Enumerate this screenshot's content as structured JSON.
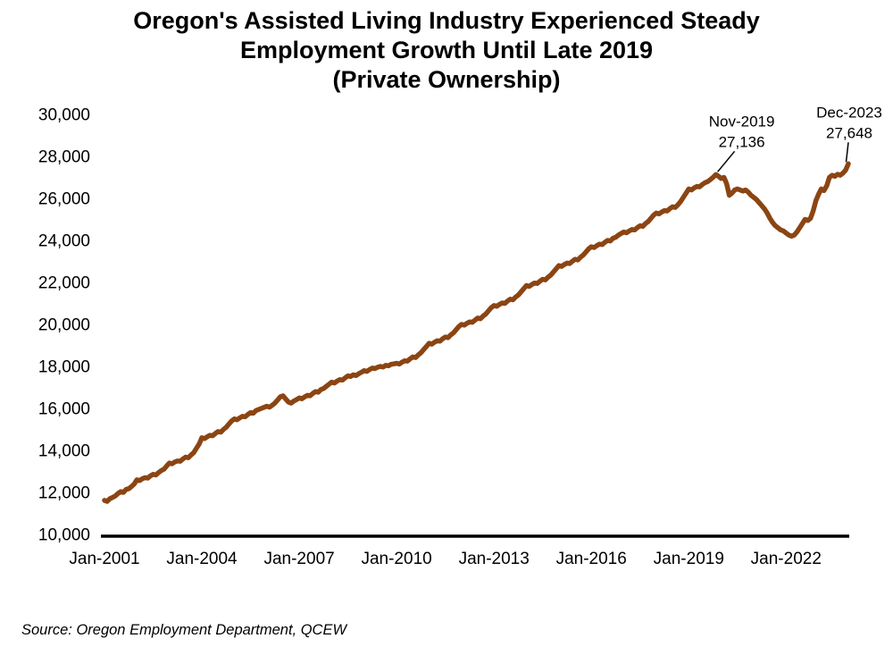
{
  "title_lines": [
    "Oregon's Assisted Living Industry Experienced Steady",
    "Employment Growth Until Late 2019",
    "(Private Ownership)"
  ],
  "source_note": "Source: Oregon Employment Department, QCEW",
  "chart_data": {
    "type": "line",
    "series_name": "Oregon assisted living employment, private ownership",
    "frequency": "monthly",
    "x_start": "Jan-2001",
    "x_end": "Dec-2023",
    "x_tick_labels": [
      "Jan-2001",
      "Jan-2004",
      "Jan-2007",
      "Jan-2010",
      "Jan-2013",
      "Jan-2016",
      "Jan-2019",
      "Jan-2022"
    ],
    "x_tick_month_indices": [
      0,
      36,
      72,
      108,
      144,
      180,
      216,
      252
    ],
    "y_tick_labels": [
      "10,000",
      "12,000",
      "14,000",
      "16,000",
      "18,000",
      "20,000",
      "22,000",
      "24,000",
      "26,000",
      "28,000",
      "30,000"
    ],
    "y_tick_values": [
      10000,
      12000,
      14000,
      16000,
      18000,
      20000,
      22000,
      24000,
      26000,
      28000,
      30000
    ],
    "ylim": [
      10000,
      30000
    ],
    "grid": false,
    "legend": false,
    "line_color": "#8B4513",
    "values": [
      11620,
      11570,
      11700,
      11760,
      11830,
      11950,
      12040,
      12000,
      12140,
      12180,
      12280,
      12400,
      12600,
      12560,
      12650,
      12700,
      12680,
      12790,
      12860,
      12830,
      12950,
      13040,
      13100,
      13260,
      13400,
      13360,
      13450,
      13500,
      13480,
      13590,
      13680,
      13650,
      13780,
      13900,
      14100,
      14300,
      14600,
      14560,
      14650,
      14720,
      14700,
      14810,
      14900,
      14870,
      15000,
      15100,
      15250,
      15400,
      15500,
      15460,
      15550,
      15620,
      15600,
      15710,
      15800,
      15770,
      15900,
      15950,
      16000,
      16050,
      16100,
      16060,
      16150,
      16250,
      16400,
      16550,
      16600,
      16450,
      16300,
      16250,
      16350,
      16420,
      16500,
      16460,
      16550,
      16620,
      16600,
      16710,
      16800,
      16770,
      16900,
      16950,
      17050,
      17150,
      17250,
      17210,
      17300,
      17370,
      17350,
      17460,
      17550,
      17520,
      17600,
      17560,
      17650,
      17720,
      17800,
      17760,
      17850,
      17920,
      17900,
      17960,
      18000,
      17970,
      18050,
      18030,
      18100,
      18120,
      18150,
      18110,
      18200,
      18270,
      18250,
      18360,
      18450,
      18420,
      18550,
      18650,
      18800,
      18950,
      19100,
      19060,
      19150,
      19220,
      19200,
      19310,
      19400,
      19370,
      19500,
      19600,
      19750,
      19900,
      20000,
      19960,
      20050,
      20120,
      20100,
      20210,
      20300,
      20270,
      20400,
      20500,
      20650,
      20800,
      20900,
      20860,
      20950,
      21020,
      21000,
      21110,
      21200,
      21170,
      21300,
      21400,
      21550,
      21700,
      21850,
      21810,
      21900,
      21970,
      21950,
      22060,
      22150,
      22120,
      22250,
      22350,
      22500,
      22650,
      22800,
      22760,
      22850,
      22920,
      22900,
      23010,
      23100,
      23070,
      23200,
      23300,
      23450,
      23600,
      23700,
      23660,
      23750,
      23820,
      23800,
      23910,
      24000,
      23970,
      24100,
      24150,
      24250,
      24330,
      24400,
      24360,
      24450,
      24520,
      24500,
      24610,
      24700,
      24670,
      24800,
      24900,
      25050,
      25200,
      25300,
      25260,
      25350,
      25420,
      25400,
      25510,
      25600,
      25570,
      25700,
      25850,
      26050,
      26250,
      26450,
      26400,
      26500,
      26570,
      26550,
      26660,
      26750,
      26800,
      26900,
      27000,
      27136,
      27050,
      26950,
      27000,
      26700,
      26150,
      26250,
      26400,
      26450,
      26400,
      26350,
      26400,
      26300,
      26150,
      26050,
      25950,
      25800,
      25650,
      25500,
      25300,
      25050,
      24850,
      24700,
      24600,
      24500,
      24450,
      24350,
      24250,
      24200,
      24250,
      24400,
      24600,
      24800,
      25000,
      24950,
      25050,
      25400,
      25900,
      26200,
      26450,
      26370,
      26600,
      27000,
      27100,
      27050,
      27150,
      27100,
      27200,
      27350,
      27648
    ],
    "annotations": [
      {
        "month_index": 226,
        "value": 27136,
        "lines": [
          "Nov-2019",
          "27,136"
        ]
      },
      {
        "month_index": 275,
        "value": 27648,
        "lines": [
          "Dec-2023",
          "27,648"
        ]
      }
    ]
  }
}
